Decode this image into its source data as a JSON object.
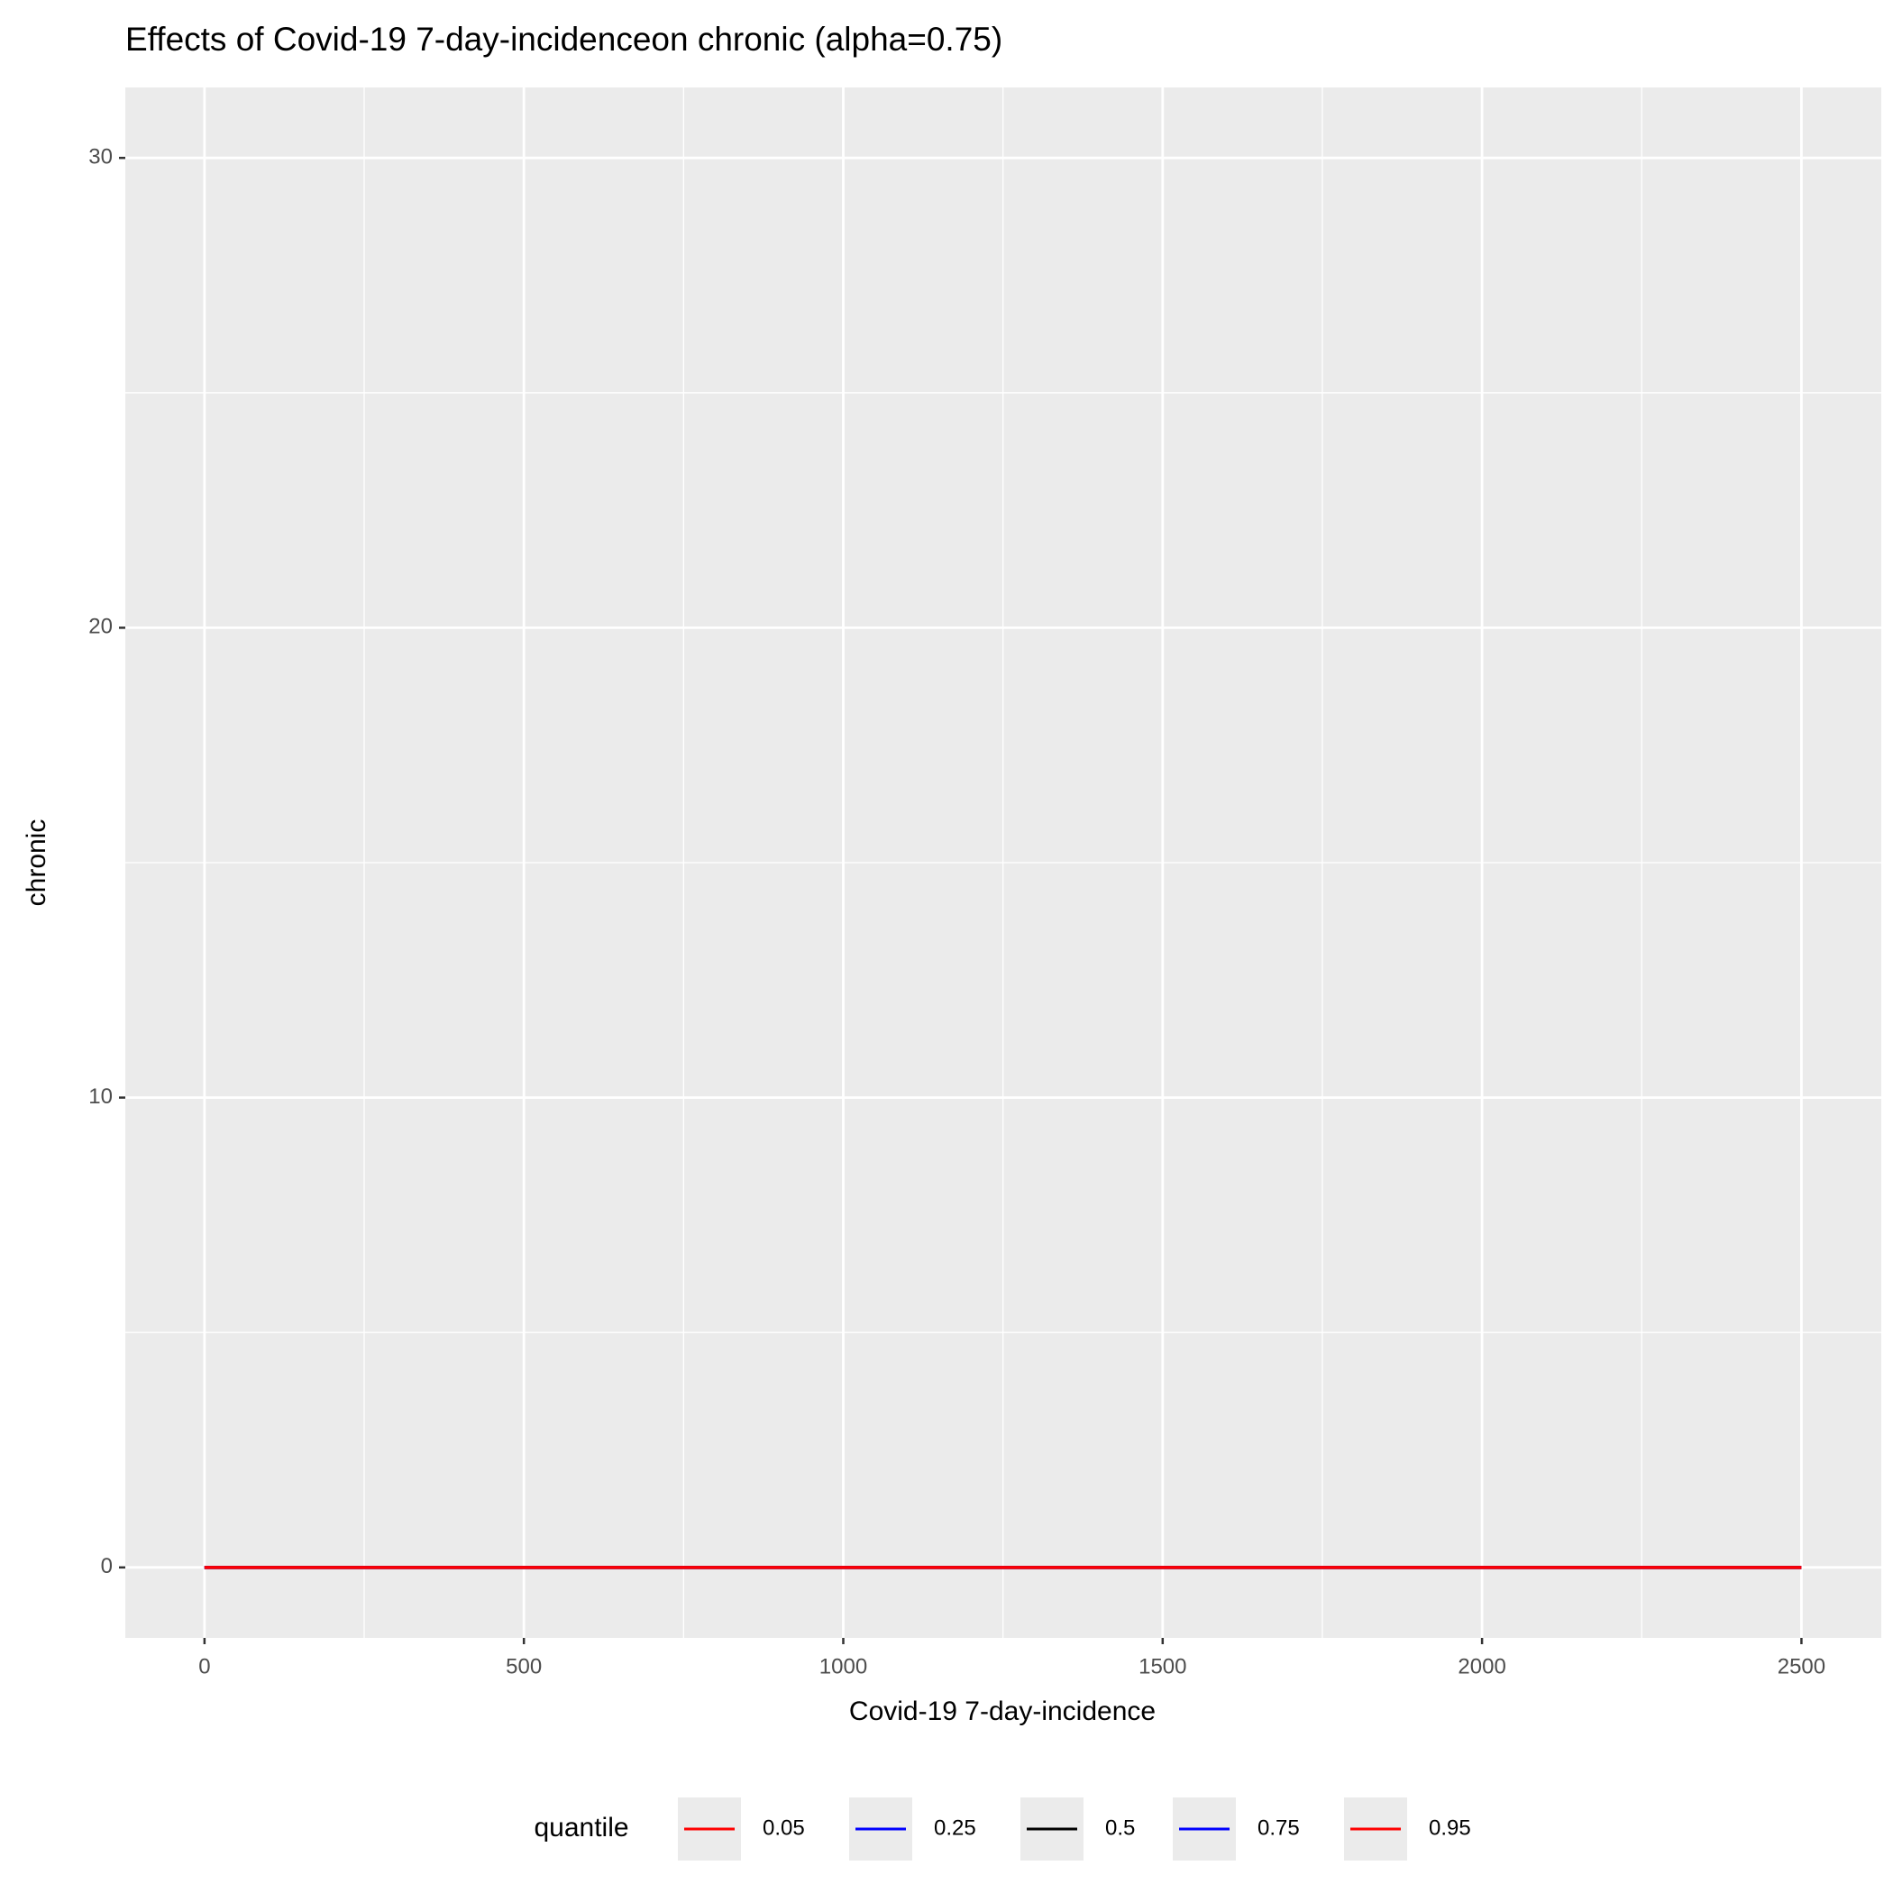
{
  "chart_data": {
    "type": "line",
    "title": "Effects of Covid-19 7-day-incidenceon chronic (alpha=0.75)",
    "x_label": "Covid-19 7-day-incidence",
    "y_label": "chronic",
    "legend_title": "quantile",
    "legend_position": "bottom",
    "grid": true,
    "x": [
      0,
      2500
    ],
    "series": [
      {
        "name": "0.05",
        "color": "#ff0000",
        "values": [
          0,
          0
        ]
      },
      {
        "name": "0.25",
        "color": "#0000ff",
        "values": [
          0,
          0
        ]
      },
      {
        "name": "0.5",
        "color": "#000000",
        "values": [
          0,
          0
        ]
      },
      {
        "name": "0.75",
        "color": "#0000ff",
        "values": [
          0,
          0
        ]
      },
      {
        "name": "0.95",
        "color": "#ff0000",
        "values": [
          0,
          0
        ]
      }
    ],
    "xlim": [
      -124,
      2625
    ],
    "xticks": [
      0,
      500,
      1000,
      1500,
      2000,
      2500
    ],
    "ylim": [
      -1.5,
      31.5
    ],
    "yticks": [
      0,
      10,
      20,
      30
    ]
  }
}
